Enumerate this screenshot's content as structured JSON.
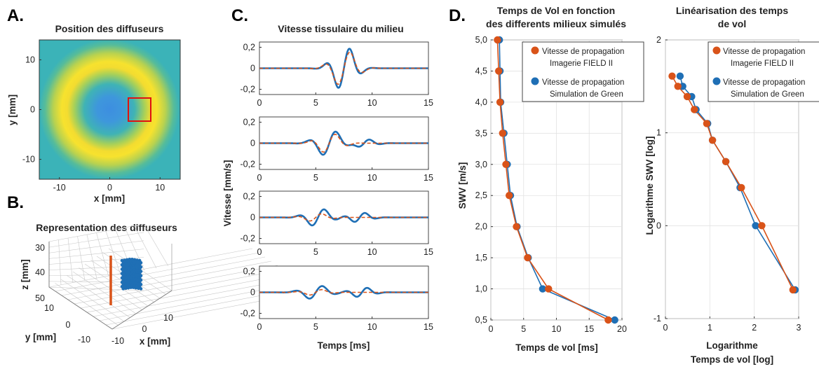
{
  "panels": {
    "A": {
      "letter": "A.",
      "title": "Position des diffuseurs",
      "xlabel": "x [mm]",
      "ylabel": "y [mm]",
      "xticks": [
        "-10",
        "0",
        "10"
      ],
      "yticks": [
        "10",
        "0",
        "-10"
      ]
    },
    "B": {
      "letter": "B.",
      "title": "Representation des diffuseurs",
      "zlabel": "z [mm]",
      "ylabel": "y [mm]",
      "xlabel": "x [mm]",
      "zticks": [
        "30",
        "40",
        "50"
      ],
      "yticks": [
        "10",
        "0",
        "-10"
      ],
      "xticks": [
        "-10",
        "0",
        "10"
      ]
    },
    "C": {
      "letter": "C.",
      "title": "Vitesse tissulaire du milieu",
      "ylabel": "Vitesse [mm/s]",
      "xlabel": "Temps [ms]",
      "yticks": [
        "0,2",
        "0",
        "-0,2"
      ],
      "xticks": [
        "0",
        "5",
        "10",
        "15"
      ]
    },
    "D": {
      "letter": "D.",
      "title1": "Temps de Vol en fonction",
      "title2": "des differents milieux simulés",
      "ylabel": "SWV [m/s]",
      "xlabel": "Temps de vol [ms]",
      "yticks": [
        "5,0",
        "4,5",
        "4,0",
        "3,5",
        "3,0",
        "2,5",
        "2,0",
        "1,5",
        "1,0",
        "0,5"
      ],
      "xticks": [
        "0",
        "5",
        "10",
        "15",
        "20"
      ],
      "legend": {
        "orange_l1": "Vitesse de propagation",
        "orange_l2": "Imagerie FIELD II",
        "blue_l1": "Vitesse de propagation",
        "blue_l2": "Simulation de Green"
      }
    },
    "E": {
      "title1": "Linéarisation des temps",
      "title2": "de vol",
      "ylabel": "Logarithme SWV [log]",
      "xlabel1": "Logarithme",
      "xlabel2": "Temps de vol [log]",
      "yticks": [
        "2",
        "1",
        "0",
        "-1"
      ],
      "xticks": [
        "0",
        "1",
        "2",
        "3"
      ],
      "legend": {
        "orange_l1": "Vitesse de propagation",
        "orange_l2": "Imagerie FIELD II",
        "blue_l1": "Vitesse de propagation",
        "blue_l2": "Simulation de Green"
      }
    }
  },
  "colors": {
    "blue": "#1f6fb5",
    "orange": "#d95319",
    "ring_yellow": "#f5df2e",
    "heat_bg": "#3bb3b8",
    "heat_center": "#3d8ee0",
    "roi_red": "#e01010"
  },
  "chart_data": [
    {
      "type": "heatmap",
      "title": "Position des diffuseurs",
      "xlabel": "x [mm]",
      "ylabel": "y [mm]",
      "xlim": [
        -14,
        14
      ],
      "ylim": [
        -14,
        14
      ],
      "ring": {
        "inner_radius_mm": 5,
        "peak_radius_mm": 9,
        "outer_radius_mm": 13
      },
      "roi_box_mm": {
        "x": [
          4,
          9
        ],
        "y": [
          -2,
          3
        ]
      }
    },
    {
      "type": "scatter",
      "title": "Representation des diffuseurs",
      "xlabel": "x [mm]",
      "ylabel": "y [mm]",
      "zlabel": "z [mm]",
      "zlim": [
        30,
        50
      ]
    },
    {
      "type": "line",
      "title": "Vitesse tissulaire du milieu",
      "xlabel": "Temps [ms]",
      "ylabel": "Vitesse [mm/s]",
      "xlim": [
        0,
        15
      ],
      "ylim": [
        -0.25,
        0.25
      ],
      "subplots": [
        {
          "blue": {
            "t0": 7.5,
            "amp": 0.22,
            "width": 1.4
          },
          "orange": {
            "t0": 7.5,
            "amp": 0.18,
            "width": 1.5
          }
        },
        {
          "blue": {
            "t0": 6.2,
            "amp": 0.13,
            "width": 1.6,
            "t1": 9.3,
            "amp1": 0.04
          },
          "orange": {
            "t0": 6.2,
            "amp": 0.1,
            "width": 1.5
          }
        },
        {
          "blue": {
            "t0": 5.2,
            "amp": 0.09,
            "width": 1.5,
            "t1": 8.9,
            "amp1": 0.05
          },
          "orange": {
            "t0": 5.0,
            "amp": 0.04,
            "width": 1.5
          }
        },
        {
          "blue": {
            "t0": 5.0,
            "amp": 0.07,
            "width": 1.6,
            "t1": 9.1,
            "amp1": 0.05
          },
          "orange": {
            "t0": 5.0,
            "amp": 0.03,
            "width": 1.5
          }
        }
      ]
    },
    {
      "type": "line",
      "title": "Temps de Vol en fonction des differents milieux simulés",
      "xlabel": "Temps de vol [ms]",
      "ylabel": "SWV [m/s]",
      "xlim": [
        0,
        20
      ],
      "ylim": [
        0.5,
        5.0
      ],
      "series": [
        {
          "name": "Vitesse de propagation Imagerie FIELD II",
          "x": [
            1.0,
            1.2,
            1.4,
            1.8,
            2.3,
            2.8,
            3.9,
            5.6,
            8.8,
            17.9
          ],
          "y": [
            5.0,
            4.5,
            4.0,
            3.5,
            3.0,
            2.5,
            2.0,
            1.5,
            1.0,
            0.5
          ]
        },
        {
          "name": "Vitesse de propagation Simulation de Green",
          "x": [
            1.3,
            1.4,
            1.5,
            2.0,
            2.5,
            3.0,
            4.0,
            5.7,
            7.9,
            18.9
          ],
          "y": [
            5.0,
            4.5,
            4.0,
            3.5,
            3.0,
            2.5,
            2.0,
            1.5,
            1.0,
            0.5
          ]
        }
      ]
    },
    {
      "type": "line",
      "title": "Linéarisation des temps de vol",
      "xlabel": "Logarithme Temps de vol [log]",
      "ylabel": "Logarithme SWV [log]",
      "xlim": [
        0,
        3
      ],
      "ylim": [
        -1,
        2
      ],
      "series": [
        {
          "name": "Vitesse de propagation Imagerie FIELD II",
          "x": [
            0.15,
            0.28,
            0.49,
            0.65,
            0.93,
            1.06,
            1.36,
            1.71,
            2.17,
            2.87
          ],
          "y": [
            1.61,
            1.5,
            1.39,
            1.25,
            1.1,
            0.92,
            0.69,
            0.41,
            0.0,
            -0.69
          ]
        },
        {
          "name": "Vitesse de propagation Simulation de Green",
          "x": [
            0.33,
            0.39,
            0.59,
            0.69,
            0.95,
            1.06,
            1.36,
            1.68,
            2.03,
            2.92
          ],
          "y": [
            1.61,
            1.5,
            1.39,
            1.25,
            1.1,
            0.92,
            0.69,
            0.41,
            0.0,
            -0.69
          ]
        }
      ]
    }
  ]
}
